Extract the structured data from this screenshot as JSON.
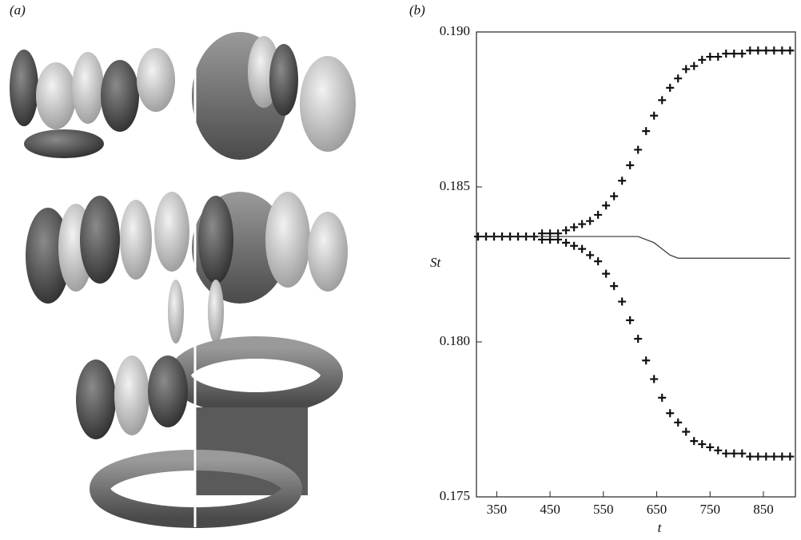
{
  "panel_a_label": "(a)",
  "chart_data": {
    "type": "line",
    "panel_label": "(b)",
    "xlabel": "t",
    "ylabel": "St",
    "x": [
      315,
      330,
      345,
      360,
      375,
      390,
      405,
      420,
      435,
      450,
      465,
      480,
      495,
      510,
      525,
      540,
      555,
      570,
      585,
      600,
      615,
      630,
      645,
      660,
      675,
      690,
      705,
      720,
      735,
      750,
      765,
      780,
      795,
      810,
      825,
      840,
      855,
      870,
      885,
      900
    ],
    "series": [
      {
        "marker": "+",
        "color": "#111111",
        "values": [
          0.1834,
          0.1834,
          0.1834,
          0.1834,
          0.1834,
          0.1834,
          0.1834,
          0.1834,
          0.1835,
          0.1835,
          0.1835,
          0.1836,
          0.1837,
          0.1838,
          0.1839,
          0.1841,
          0.1844,
          0.1847,
          0.1852,
          0.1857,
          0.1862,
          0.1868,
          0.1873,
          0.1878,
          0.1882,
          0.1885,
          0.1888,
          0.1889,
          0.1891,
          0.1892,
          0.1892,
          0.1893,
          0.1893,
          0.1893,
          0.1894,
          0.1894,
          0.1894,
          0.1894,
          0.1894,
          0.1894
        ]
      },
      {
        "marker": "+",
        "color": "#111111",
        "values": [
          0.1834,
          0.1834,
          0.1834,
          0.1834,
          0.1834,
          0.1834,
          0.1834,
          0.1834,
          0.1833,
          0.1833,
          0.1833,
          0.1832,
          0.1831,
          0.183,
          0.1828,
          0.1826,
          0.1822,
          0.1818,
          0.1813,
          0.1807,
          0.1801,
          0.1794,
          0.1788,
          0.1782,
          0.1777,
          0.1774,
          0.1771,
          0.1768,
          0.1767,
          0.1766,
          0.1765,
          0.1764,
          0.1764,
          0.1764,
          0.1763,
          0.1763,
          0.1763,
          0.1763,
          0.1763,
          0.1763
        ]
      },
      {
        "marker": "line",
        "color": "#333333",
        "values": [
          0.1834,
          0.1834,
          0.1834,
          0.1834,
          0.1834,
          0.1834,
          0.1834,
          0.1834,
          0.1834,
          0.1834,
          0.1834,
          0.1834,
          0.1834,
          0.1834,
          0.1834,
          0.1834,
          0.1834,
          0.1834,
          0.1834,
          0.1834,
          0.1834,
          0.1833,
          0.1832,
          0.183,
          0.1828,
          0.1827,
          0.1827,
          0.1827,
          0.1827,
          0.1827,
          0.1827,
          0.1827,
          0.1827,
          0.1827,
          0.1827,
          0.1827,
          0.1827,
          0.1827,
          0.1827,
          0.1827
        ]
      }
    ],
    "xlim": [
      312,
      910
    ],
    "ylim": [
      0.175,
      0.19
    ],
    "xticks": [
      350,
      450,
      550,
      650,
      750,
      850
    ],
    "yticks": [
      {
        "value": 0.175,
        "label": "0.175"
      },
      {
        "value": 0.18,
        "label": "0.180"
      },
      {
        "value": 0.185,
        "label": "0.185"
      },
      {
        "value": 0.19,
        "label": "0.190"
      }
    ]
  }
}
